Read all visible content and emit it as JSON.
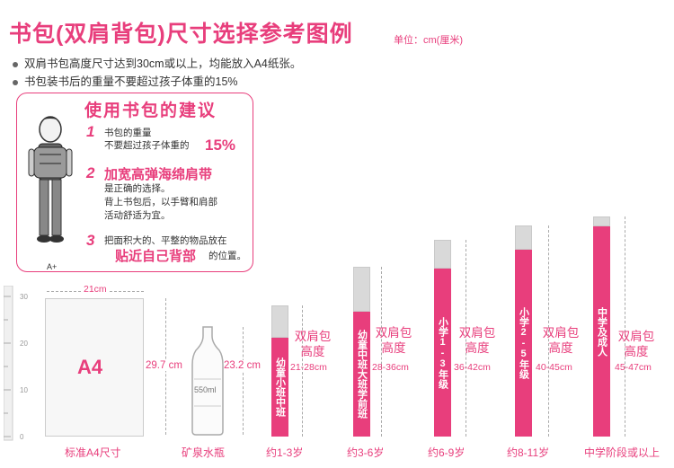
{
  "title": "书包(双肩背包)尺寸选择参考图例",
  "unit": "单位：cm(厘米)",
  "notes": [
    "双肩书包高度尺寸达到30cm或以上，均能放入A4纸张。",
    "书包装书后的重量不要超过孩子体重的15%"
  ],
  "panel": {
    "title": "使用书包的建议",
    "tip1": {
      "num": "1",
      "line1": "书包的重量",
      "line2": "不要超过孩子体重的",
      "big": "15%"
    },
    "tip2": {
      "num": "2",
      "heading": "加宽高弹海绵肩带",
      "line1": "是正确的选择。",
      "line2": "背上书包后，以手臂和肩部",
      "line3": "活动舒适为宜。"
    },
    "tip3": {
      "num": "3",
      "line1": "把面积大的、平整的物品放在",
      "big": "贴近自己背部",
      "tail": "的位置。"
    },
    "figure_label": "A+"
  },
  "ruler": {
    "ticks": [
      "30",
      "20",
      "10",
      "0"
    ]
  },
  "a4": {
    "width_label": "21cm",
    "name": "A4",
    "height_label": "29.7 cm",
    "bottom_label": "标准A4尺寸"
  },
  "bottle": {
    "volume": "550ml",
    "height_label": "23.2 cm",
    "bottom_label": "矿泉水瓶"
  },
  "bags": [
    {
      "grade": "幼童小班中班",
      "dim_line1": "双肩包",
      "dim_line2": "高度",
      "range": "21-28cm",
      "age": "约1-3岁"
    },
    {
      "grade": "幼童中班大班学前班",
      "dim_line1": "双肩包",
      "dim_line2": "高度",
      "range": "28-36cm",
      "age": "约3-6岁"
    },
    {
      "grade": "小学1-3年级",
      "dim_line1": "双肩包",
      "dim_line2": "高度",
      "range": "36-42cm",
      "age": "约6-9岁"
    },
    {
      "grade": "小学2-5年级",
      "dim_line1": "双肩包",
      "dim_line2": "高度",
      "range": "40-45cm",
      "age": "约8-11岁"
    },
    {
      "grade": "中学及成人",
      "dim_line1": "双肩包",
      "dim_line2": "高度",
      "range": "45-47cm",
      "age": "中学阶段或以上"
    }
  ],
  "colors": {
    "accent": "#e83e7c",
    "gray": "#d9d9d9"
  }
}
